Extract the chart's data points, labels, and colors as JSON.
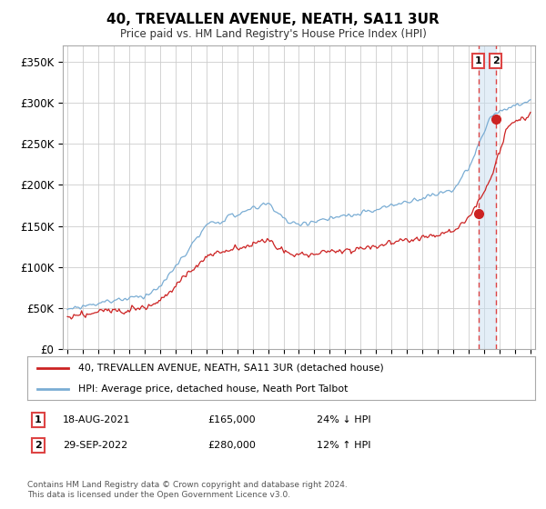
{
  "title": "40, TREVALLEN AVENUE, NEATH, SA11 3UR",
  "subtitle": "Price paid vs. HM Land Registry's House Price Index (HPI)",
  "footer": "Contains HM Land Registry data © Crown copyright and database right 2024.\nThis data is licensed under the Open Government Licence v3.0.",
  "legend_line1": "40, TREVALLEN AVENUE, NEATH, SA11 3UR (detached house)",
  "legend_line2": "HPI: Average price, detached house, Neath Port Talbot",
  "ylim": [
    0,
    370000
  ],
  "yticks": [
    0,
    50000,
    100000,
    150000,
    200000,
    250000,
    300000,
    350000
  ],
  "ytick_labels": [
    "£0",
    "£50K",
    "£100K",
    "£150K",
    "£200K",
    "£250K",
    "£300K",
    "£350K"
  ],
  "hpi_color": "#7aadd4",
  "price_color": "#cc2222",
  "vline_color": "#dd4444",
  "vfill_color": "#c8dff0",
  "transaction1_time": 2021.625,
  "transaction1_price": 165000,
  "transaction2_time": 2022.75,
  "transaction2_price": 280000,
  "background_color": "#ffffff",
  "grid_color": "#cccccc",
  "xlim_min": 1994.7,
  "xlim_max": 2025.3,
  "start_year": 1995,
  "end_year": 2025
}
